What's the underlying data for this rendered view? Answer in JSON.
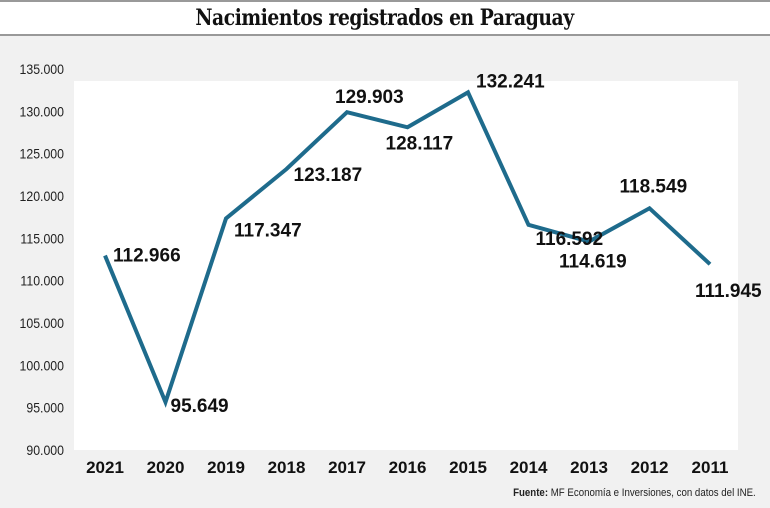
{
  "chart_data": {
    "type": "line",
    "title": "Nacimientos registrados en Paraguay",
    "categories": [
      "2021",
      "2020",
      "2019",
      "2018",
      "2017",
      "2016",
      "2015",
      "2014",
      "2013",
      "2012",
      "2011"
    ],
    "values": [
      112966,
      95649,
      117347,
      123187,
      129903,
      128117,
      132241,
      116592,
      114619,
      118549,
      111945
    ],
    "data_labels": [
      "112.966",
      "95.649",
      "117.347",
      "123.187",
      "129.903",
      "128.117",
      "132.241",
      "116.592",
      "114.619",
      "118.549",
      "111.945"
    ],
    "ylim": [
      90000,
      135000
    ],
    "yticks": [
      "90.000",
      "95.000",
      "100.000",
      "105.000",
      "110.000",
      "115.000",
      "120.000",
      "125.000",
      "130.000",
      "135.000"
    ],
    "grid": false,
    "line_color": "#1e6b8c"
  },
  "source": {
    "label": "Fuente:",
    "text": " MF Economía e Inversiones, con datos del INE."
  }
}
